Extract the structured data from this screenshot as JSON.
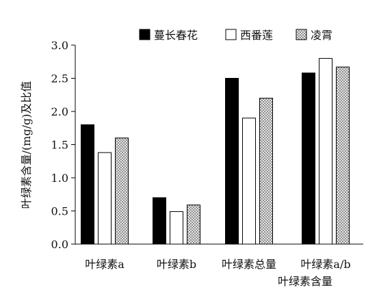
{
  "chart_data": {
    "type": "bar",
    "categories": [
      "叶绿素a",
      "叶绿素b",
      "叶绿素总量",
      "叶绿素a/b"
    ],
    "category_labels_extra": [
      "",
      "",
      "叶绿素含量",
      ""
    ],
    "series": [
      {
        "name": "蔓长春花",
        "values": [
          1.8,
          0.7,
          2.5,
          2.58
        ],
        "fill": "solid"
      },
      {
        "name": "西番莲",
        "values": [
          1.38,
          0.49,
          1.9,
          2.8
        ],
        "fill": "white"
      },
      {
        "name": "凌霄",
        "values": [
          1.6,
          0.59,
          2.2,
          2.67
        ],
        "fill": "dotted"
      }
    ],
    "ylabel": "叶绿素含量/(mg/g)及比值",
    "xlabel": "",
    "ylim": [
      0,
      3.0
    ],
    "yticks": [
      "0.0",
      "0.5",
      "1.0",
      "1.5",
      "2.0",
      "2.5",
      "3.0"
    ],
    "grid": false,
    "legend_position": "top-right",
    "colors": {
      "solid": "#000000",
      "white": "#ffffff",
      "dot_bg": "#e6e6e6",
      "dot_fg": "#2a2a2a",
      "axis": "#000000"
    }
  }
}
